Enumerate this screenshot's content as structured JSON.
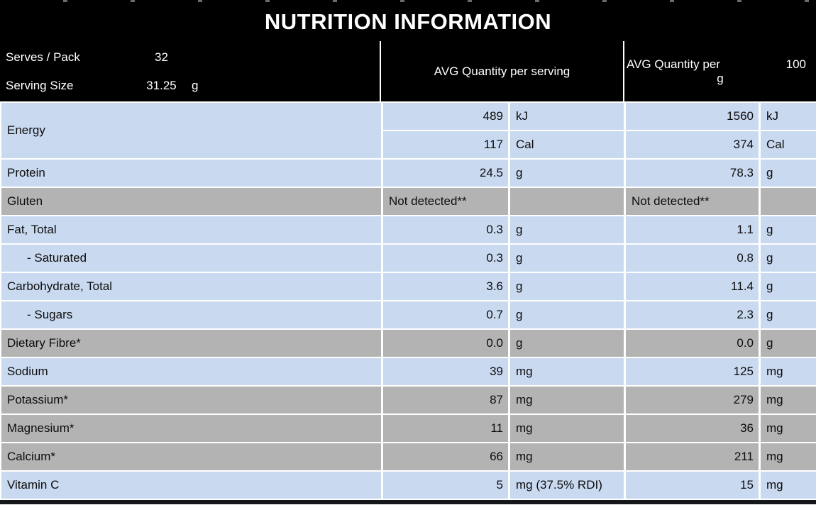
{
  "title": "NUTRITION INFORMATION",
  "pack_info": {
    "serves_label": "Serves / Pack",
    "serves_value": "32",
    "serving_size_label": "Serving Size",
    "serving_size_value": "31.25",
    "serving_size_unit": "g"
  },
  "columns": {
    "per_serving_header": "AVG Quantity per serving",
    "per_100_prefix": "AVG Quantity per",
    "per_100_amount": "100",
    "per_100_unit_line": "g"
  },
  "rows": [
    {
      "label": "Energy",
      "sub": [
        {
          "serving_value": "489",
          "serving_unit": "kJ",
          "per100_value": "1560",
          "per100_unit": "kJ"
        },
        {
          "serving_value": "117",
          "serving_unit": "Cal",
          "per100_value": "374",
          "per100_unit": "Cal"
        }
      ]
    },
    {
      "label": "Protein",
      "serving_value": "24.5",
      "serving_unit": "g",
      "per100_value": "78.3",
      "per100_unit": "g"
    },
    {
      "label": "Gluten",
      "serving_value": "Not detected**",
      "serving_unit": "",
      "per100_value": "Not detected**",
      "per100_unit": ""
    },
    {
      "label": "Fat, Total",
      "serving_value": "0.3",
      "serving_unit": "g",
      "per100_value": "1.1",
      "per100_unit": "g"
    },
    {
      "label": "- Saturated",
      "serving_value": "0.3",
      "serving_unit": "g",
      "per100_value": "0.8",
      "per100_unit": "g"
    },
    {
      "label": "Carbohydrate, Total",
      "serving_value": "3.6",
      "serving_unit": "g",
      "per100_value": "11.4",
      "per100_unit": "g"
    },
    {
      "label": "- Sugars",
      "serving_value": "0.7",
      "serving_unit": "g",
      "per100_value": "2.3",
      "per100_unit": "g"
    },
    {
      "label": "Dietary Fibre*",
      "serving_value": "0.0",
      "serving_unit": "g",
      "per100_value": "0.0",
      "per100_unit": "g"
    },
    {
      "label": "Sodium",
      "serving_value": "39",
      "serving_unit": "mg",
      "per100_value": "125",
      "per100_unit": "mg"
    },
    {
      "label": "Potassium*",
      "serving_value": "87",
      "serving_unit": "mg",
      "per100_value": "279",
      "per100_unit": "mg"
    },
    {
      "label": "Magnesium*",
      "serving_value": "11",
      "serving_unit": "mg",
      "per100_value": "36",
      "per100_unit": "mg"
    },
    {
      "label": "Calcium*",
      "serving_value": "66",
      "serving_unit": "mg",
      "per100_value": "211",
      "per100_unit": "mg"
    },
    {
      "label": "Vitamin C",
      "serving_value": "5",
      "serving_unit": "mg (37.5% RDI)",
      "per100_value": "15",
      "per100_unit": "mg"
    }
  ],
  "colors": {
    "row_blue": "#c9d9f0",
    "row_gray": "#b3b3b3",
    "header_bg": "#000000",
    "header_text": "#ffffff"
  }
}
